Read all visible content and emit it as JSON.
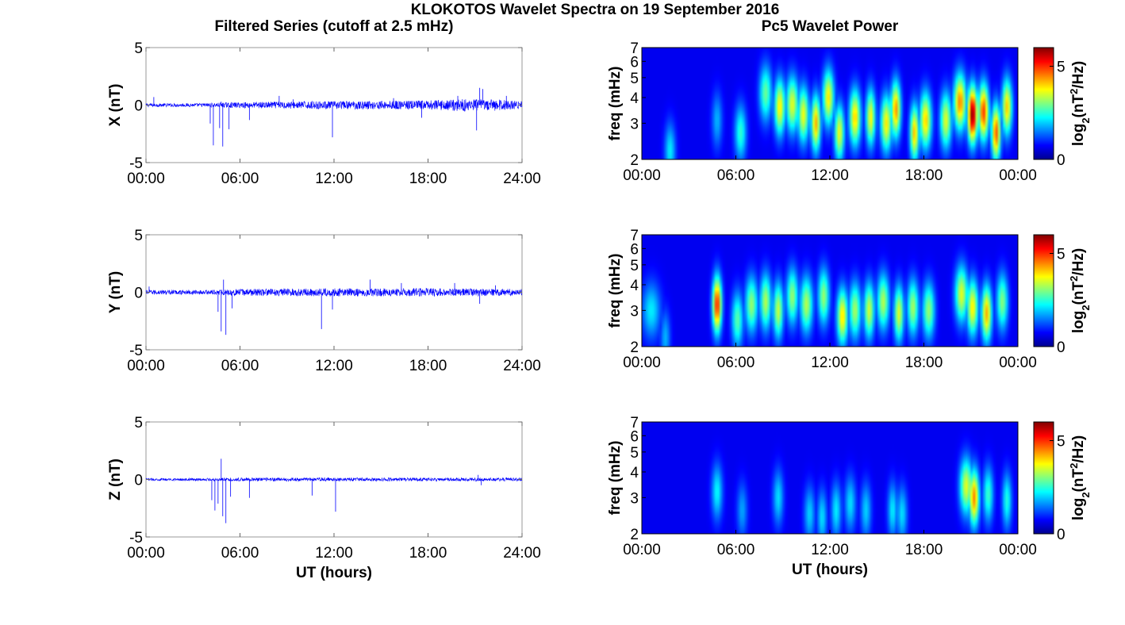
{
  "title": "KLOKOTOS Wavelet Spectra on 19 September 2016",
  "left_title": "Filtered Series (cutoff at 2.5 mHz)",
  "right_title": "Pc5 Wavelet Power",
  "x_axis_label": "UT (hours)",
  "freq_label": "freq (mHz)",
  "colorbar_label": "log2(nT2/Hz)",
  "chart_data": [
    {
      "type": "line",
      "component": "X",
      "ylabel": "X (nT)",
      "ylim": [
        -5,
        5
      ],
      "yticks": [
        "5",
        "0",
        "-5"
      ],
      "xlim": [
        0,
        24
      ],
      "xticks": [
        "00:00",
        "06:00",
        "12:00",
        "18:00",
        "24:00"
      ],
      "noise_amplitude": [
        [
          0,
          0.15
        ],
        [
          3,
          0.15
        ],
        [
          6,
          0.25
        ],
        [
          8,
          0.3
        ],
        [
          12,
          0.35
        ],
        [
          18,
          0.4
        ],
        [
          20,
          0.55
        ],
        [
          22.5,
          0.5
        ],
        [
          24,
          0.35
        ]
      ],
      "spikes": [
        [
          0.5,
          0.7
        ],
        [
          4.1,
          -1.6
        ],
        [
          4.3,
          -3.5
        ],
        [
          4.7,
          -2.0
        ],
        [
          4.8,
          0.3
        ],
        [
          4.9,
          -3.6
        ],
        [
          5.3,
          -2.1
        ],
        [
          6.6,
          -1.3
        ],
        [
          8.5,
          0.8
        ],
        [
          9.4,
          0.5
        ],
        [
          11.9,
          -2.8
        ],
        [
          15.8,
          0.6
        ],
        [
          17.6,
          -1.1
        ],
        [
          19.9,
          0.8
        ],
        [
          21.1,
          -2.2
        ],
        [
          21.3,
          1.5
        ],
        [
          21.5,
          1.4
        ],
        [
          23.0,
          0.8
        ]
      ]
    },
    {
      "type": "line",
      "component": "Y",
      "ylabel": "Y (nT)",
      "ylim": [
        -5,
        5
      ],
      "yticks": [
        "5",
        "0",
        "-5"
      ],
      "xlim": [
        0,
        24
      ],
      "xticks": [
        "00:00",
        "06:00",
        "12:00",
        "18:00",
        "24:00"
      ],
      "noise_amplitude": [
        [
          0,
          0.2
        ],
        [
          4,
          0.2
        ],
        [
          6,
          0.3
        ],
        [
          12,
          0.35
        ],
        [
          18,
          0.35
        ],
        [
          24,
          0.3
        ]
      ],
      "spikes": [
        [
          0.2,
          0.5
        ],
        [
          4.6,
          -1.7
        ],
        [
          4.8,
          -3.4
        ],
        [
          4.95,
          1.1
        ],
        [
          5.1,
          -3.7
        ],
        [
          5.5,
          -1.4
        ],
        [
          11.2,
          -3.2
        ],
        [
          11.9,
          -1.5
        ],
        [
          14.3,
          1.1
        ],
        [
          16.3,
          0.8
        ],
        [
          19.7,
          0.8
        ],
        [
          21.3,
          -1.0
        ],
        [
          22.3,
          0.6
        ]
      ]
    },
    {
      "type": "line",
      "component": "Z",
      "ylabel": "Z (nT)",
      "ylim": [
        -5,
        5
      ],
      "yticks": [
        "5",
        "0",
        "-5"
      ],
      "xlim": [
        0,
        24
      ],
      "xticks": [
        "00:00",
        "06:00",
        "12:00",
        "18:00",
        "24:00"
      ],
      "noise_amplitude": [
        [
          0,
          0.1
        ],
        [
          4,
          0.12
        ],
        [
          6,
          0.15
        ],
        [
          12,
          0.15
        ],
        [
          24,
          0.15
        ]
      ],
      "spikes": [
        [
          4.2,
          -1.8
        ],
        [
          4.4,
          -2.7
        ],
        [
          4.6,
          -2.1
        ],
        [
          4.8,
          1.8
        ],
        [
          4.9,
          -3.2
        ],
        [
          5.1,
          -3.8
        ],
        [
          5.4,
          -1.5
        ],
        [
          6.6,
          -1.6
        ],
        [
          10.6,
          -1.4
        ],
        [
          12.1,
          -2.8
        ],
        [
          21.2,
          0.4
        ],
        [
          21.4,
          -0.5
        ]
      ]
    },
    {
      "type": "heatmap",
      "component": "X",
      "ylabel": "freq (mHz)",
      "ylim": [
        2,
        7
      ],
      "ticks_freq": [
        2,
        3,
        4,
        5,
        6,
        7
      ],
      "xlim": [
        0,
        24
      ],
      "xticks": [
        "00:00",
        "06:00",
        "12:00",
        "18:00",
        "00:00"
      ],
      "colorbar_ticks": [
        0,
        5
      ],
      "colorbar_range": [
        0,
        6
      ],
      "blobs": [
        [
          1.8,
          2.9,
          2.2,
          1.7
        ],
        [
          4.8,
          2.8,
          3.1,
          1.3
        ],
        [
          6.3,
          3.1,
          2.7,
          2.1
        ],
        [
          7.9,
          3.3,
          4.2,
          2.5
        ],
        [
          8.8,
          2.9,
          3.6,
          3.6
        ],
        [
          9.6,
          3.4,
          3.7,
          3.3
        ],
        [
          10.3,
          3.0,
          3.3,
          3.4
        ],
        [
          11.1,
          2.5,
          3.0,
          4.0
        ],
        [
          11.9,
          3.0,
          4.0,
          3.6
        ],
        [
          12.6,
          2.6,
          2.7,
          3.4
        ],
        [
          13.6,
          3.0,
          3.2,
          3.8
        ],
        [
          14.6,
          2.5,
          3.2,
          3.5
        ],
        [
          15.6,
          3.0,
          3.0,
          3.6
        ],
        [
          16.2,
          2.6,
          3.5,
          4.2
        ],
        [
          17.4,
          2.4,
          2.7,
          3.9
        ],
        [
          18.1,
          3.1,
          3.1,
          3.8
        ],
        [
          19.4,
          3.0,
          3.1,
          3.3
        ],
        [
          20.3,
          3.3,
          3.8,
          4.3
        ],
        [
          21.1,
          2.6,
          3.3,
          6.0
        ],
        [
          21.8,
          2.8,
          3.4,
          4.8
        ],
        [
          22.6,
          2.4,
          2.7,
          4.6
        ],
        [
          23.3,
          2.7,
          3.6,
          3.8
        ]
      ]
    },
    {
      "type": "heatmap",
      "component": "Y",
      "ylabel": "freq (mHz)",
      "ylim": [
        2,
        7
      ],
      "ticks_freq": [
        2,
        3,
        4,
        5,
        6,
        7
      ],
      "xlim": [
        0,
        24
      ],
      "xticks": [
        "00:00",
        "06:00",
        "12:00",
        "18:00",
        "00:00"
      ],
      "colorbar_ticks": [
        0,
        5
      ],
      "colorbar_range": [
        0,
        6
      ],
      "blobs": [
        [
          0.6,
          4.9,
          3.0,
          1.7
        ],
        [
          1.5,
          2.6,
          2.2,
          1.3
        ],
        [
          4.8,
          2.4,
          3.2,
          5.0
        ],
        [
          6.1,
          3.0,
          2.7,
          2.4
        ],
        [
          7.0,
          3.3,
          3.2,
          2.8
        ],
        [
          7.9,
          3.0,
          3.3,
          3.0
        ],
        [
          8.7,
          2.7,
          3.0,
          3.1
        ],
        [
          9.6,
          3.1,
          3.5,
          2.8
        ],
        [
          10.5,
          3.3,
          3.2,
          3.0
        ],
        [
          11.6,
          3.0,
          3.5,
          2.8
        ],
        [
          12.8,
          2.9,
          2.8,
          3.7
        ],
        [
          13.6,
          3.2,
          3.0,
          2.9
        ],
        [
          14.5,
          2.8,
          3.0,
          3.2
        ],
        [
          15.4,
          3.2,
          3.3,
          3.0
        ],
        [
          16.4,
          2.6,
          2.9,
          3.3
        ],
        [
          17.3,
          3.0,
          3.1,
          2.9
        ],
        [
          18.3,
          3.2,
          3.0,
          2.8
        ],
        [
          20.4,
          3.4,
          3.6,
          3.3
        ],
        [
          21.1,
          3.0,
          3.1,
          3.6
        ],
        [
          22.0,
          2.7,
          2.9,
          4.0
        ],
        [
          23.0,
          3.0,
          3.3,
          2.7
        ]
      ]
    },
    {
      "type": "heatmap",
      "component": "Z",
      "ylabel": "freq (mHz)",
      "ylim": [
        2,
        7
      ],
      "ticks_freq": [
        2,
        3,
        4,
        5,
        6,
        7
      ],
      "xlim": [
        0,
        24
      ],
      "xticks": [
        "00:00",
        "06:00",
        "12:00",
        "18:00",
        "00:00"
      ],
      "colorbar_ticks": [
        0,
        5
      ],
      "colorbar_range": [
        0,
        6
      ],
      "blobs": [
        [
          4.8,
          2.9,
          3.2,
          1.8
        ],
        [
          6.4,
          2.8,
          2.6,
          1.2
        ],
        [
          8.7,
          2.8,
          3.0,
          1.6
        ],
        [
          10.7,
          2.9,
          2.5,
          1.5
        ],
        [
          11.5,
          2.6,
          2.4,
          1.6
        ],
        [
          12.4,
          2.7,
          2.6,
          1.7
        ],
        [
          13.3,
          3.0,
          2.8,
          1.6
        ],
        [
          14.3,
          2.8,
          2.6,
          1.5
        ],
        [
          16.0,
          2.6,
          2.6,
          1.7
        ],
        [
          16.6,
          2.8,
          2.5,
          1.6
        ],
        [
          20.7,
          3.4,
          3.4,
          3.3
        ],
        [
          21.2,
          2.7,
          3.0,
          4.3
        ],
        [
          22.1,
          2.7,
          3.1,
          2.2
        ],
        [
          23.3,
          2.5,
          2.9,
          2.0
        ]
      ]
    }
  ]
}
